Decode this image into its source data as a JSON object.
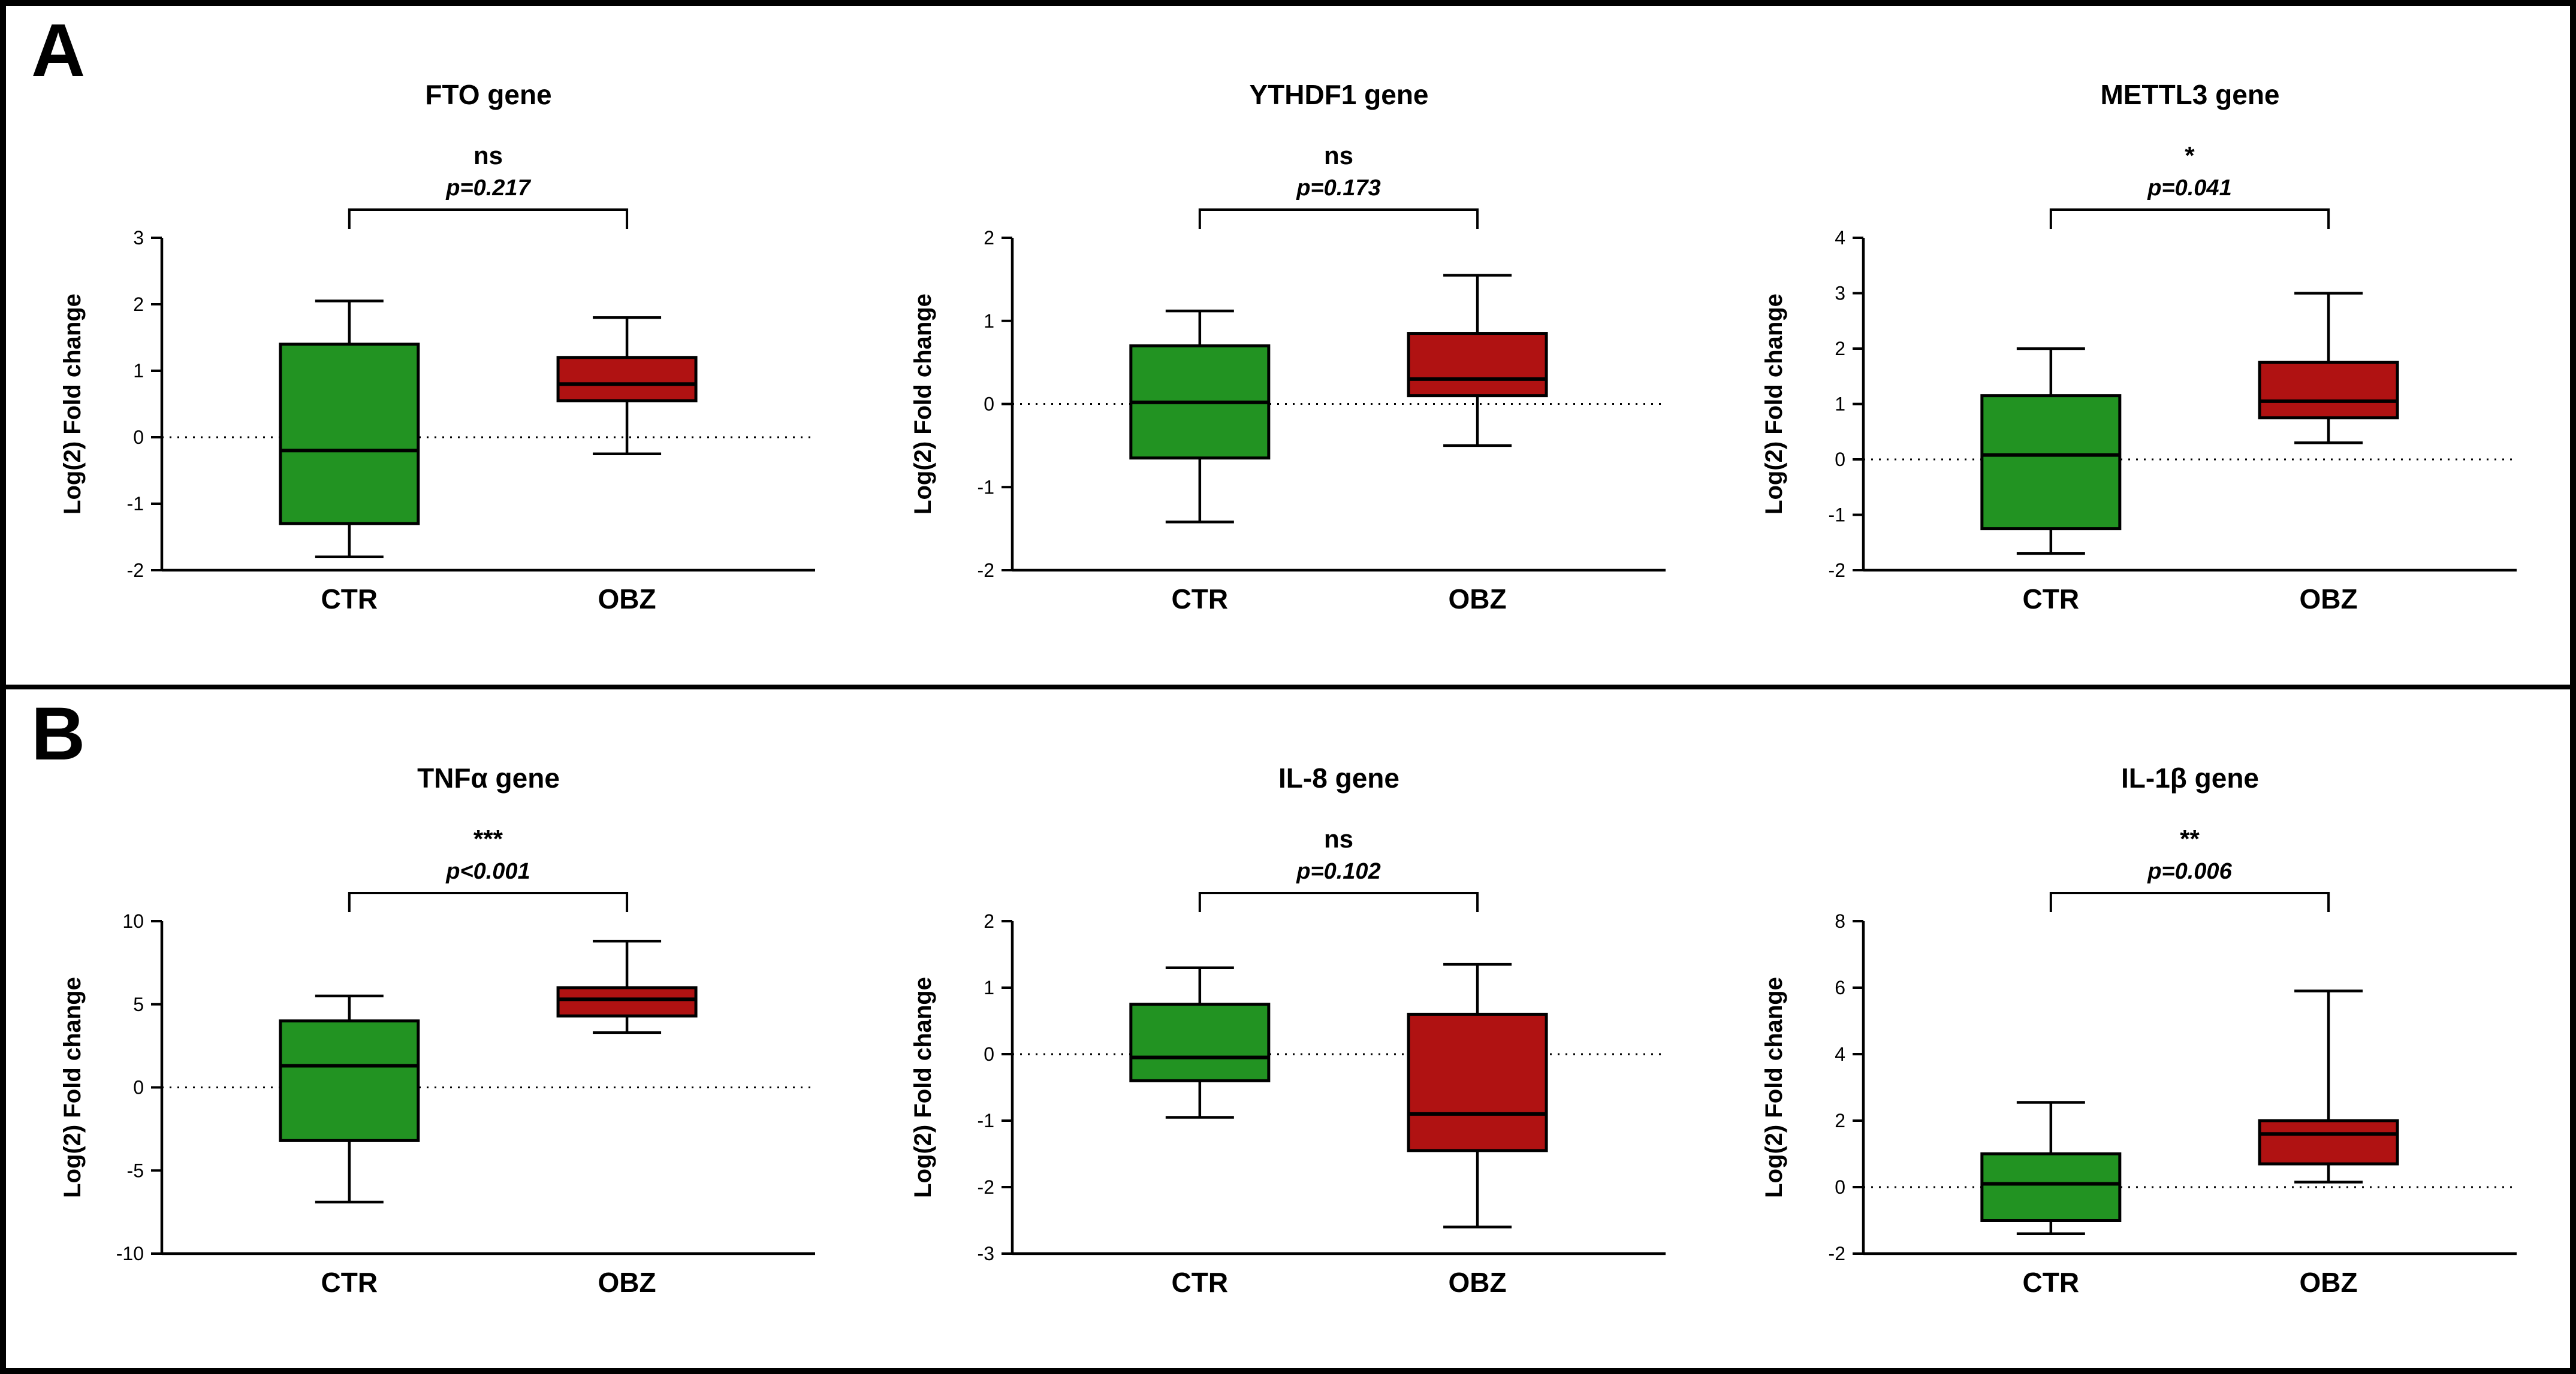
{
  "figure": {
    "background": "#ffffff",
    "border_color": "#000000"
  },
  "panels": [
    {
      "label": "A",
      "chart_indexes": [
        0,
        1,
        2
      ]
    },
    {
      "label": "B",
      "chart_indexes": [
        3,
        4,
        5
      ]
    }
  ],
  "styles": {
    "ctr_color": "#229322",
    "obz_color": "#B01212",
    "axis_color": "#000000"
  },
  "chart_data": [
    {
      "type": "box",
      "panel": "A",
      "title": "FTO gene",
      "significance": "ns",
      "p_label": "p=0.217",
      "ylabel": "Log(2) Fold change",
      "ylim": [
        -2,
        3
      ],
      "ytick_step": 1,
      "zero_line": true,
      "categories": [
        "CTR",
        "OBZ"
      ],
      "series": [
        {
          "name": "CTR",
          "color": "#229322",
          "whisker_low": -1.8,
          "q1": -1.3,
          "median": -0.2,
          "q3": 1.4,
          "whisker_high": 2.05
        },
        {
          "name": "OBZ",
          "color": "#B01212",
          "whisker_low": -0.25,
          "q1": 0.55,
          "median": 0.8,
          "q3": 1.2,
          "whisker_high": 1.8
        }
      ]
    },
    {
      "type": "box",
      "panel": "A",
      "title": "YTHDF1 gene",
      "significance": "ns",
      "p_label": "p=0.173",
      "ylabel": "Log(2) Fold change",
      "ylim": [
        -2,
        2
      ],
      "ytick_step": 1,
      "zero_line": true,
      "categories": [
        "CTR",
        "OBZ"
      ],
      "series": [
        {
          "name": "CTR",
          "color": "#229322",
          "whisker_low": -1.42,
          "q1": -0.65,
          "median": 0.02,
          "q3": 0.7,
          "whisker_high": 1.12
        },
        {
          "name": "OBZ",
          "color": "#B01212",
          "whisker_low": -0.5,
          "q1": 0.1,
          "median": 0.3,
          "q3": 0.85,
          "whisker_high": 1.55
        }
      ]
    },
    {
      "type": "box",
      "panel": "A",
      "title": "METTL3 gene",
      "significance": "*",
      "p_label": "p=0.041",
      "ylabel": "Log(2) Fold change",
      "ylim": [
        -2,
        4
      ],
      "ytick_step": 1,
      "zero_line": true,
      "categories": [
        "CTR",
        "OBZ"
      ],
      "series": [
        {
          "name": "CTR",
          "color": "#229322",
          "whisker_low": -1.7,
          "q1": -1.25,
          "median": 0.08,
          "q3": 1.15,
          "whisker_high": 2.0
        },
        {
          "name": "OBZ",
          "color": "#B01212",
          "whisker_low": 0.3,
          "q1": 0.75,
          "median": 1.05,
          "q3": 1.75,
          "whisker_high": 3.0
        }
      ]
    },
    {
      "type": "box",
      "panel": "B",
      "title": "TNFα gene",
      "significance": "***",
      "p_label": "p<0.001",
      "ylabel": "Log(2) Fold change",
      "ylim": [
        -10,
        10
      ],
      "ytick_step": 5,
      "zero_line": true,
      "categories": [
        "CTR",
        "OBZ"
      ],
      "series": [
        {
          "name": "CTR",
          "color": "#229322",
          "whisker_low": -6.9,
          "q1": -3.2,
          "median": 1.3,
          "q3": 4.0,
          "whisker_high": 5.5
        },
        {
          "name": "OBZ",
          "color": "#B01212",
          "whisker_low": 3.3,
          "q1": 4.3,
          "median": 5.3,
          "q3": 6.0,
          "whisker_high": 8.8
        }
      ]
    },
    {
      "type": "box",
      "panel": "B",
      "title": "IL-8 gene",
      "significance": "ns",
      "p_label": "p=0.102",
      "ylabel": "Log(2) Fold change",
      "ylim": [
        -3,
        2
      ],
      "ytick_step": 1,
      "zero_line": true,
      "categories": [
        "CTR",
        "OBZ"
      ],
      "series": [
        {
          "name": "CTR",
          "color": "#229322",
          "whisker_low": -0.95,
          "q1": -0.4,
          "median": -0.05,
          "q3": 0.75,
          "whisker_high": 1.3
        },
        {
          "name": "OBZ",
          "color": "#B01212",
          "whisker_low": -2.6,
          "q1": -1.45,
          "median": -0.9,
          "q3": 0.6,
          "whisker_high": 1.35
        }
      ]
    },
    {
      "type": "box",
      "panel": "B",
      "title": "IL-1β gene",
      "significance": "**",
      "p_label": "p=0.006",
      "ylabel": "Log(2) Fold change",
      "ylim": [
        -2,
        8
      ],
      "ytick_step": 2,
      "zero_line": true,
      "categories": [
        "CTR",
        "OBZ"
      ],
      "series": [
        {
          "name": "CTR",
          "color": "#229322",
          "whisker_low": -1.4,
          "q1": -1.0,
          "median": 0.1,
          "q3": 1.0,
          "whisker_high": 2.55
        },
        {
          "name": "OBZ",
          "color": "#B01212",
          "whisker_low": 0.15,
          "q1": 0.7,
          "median": 1.6,
          "q3": 2.0,
          "whisker_high": 5.9
        }
      ]
    }
  ]
}
